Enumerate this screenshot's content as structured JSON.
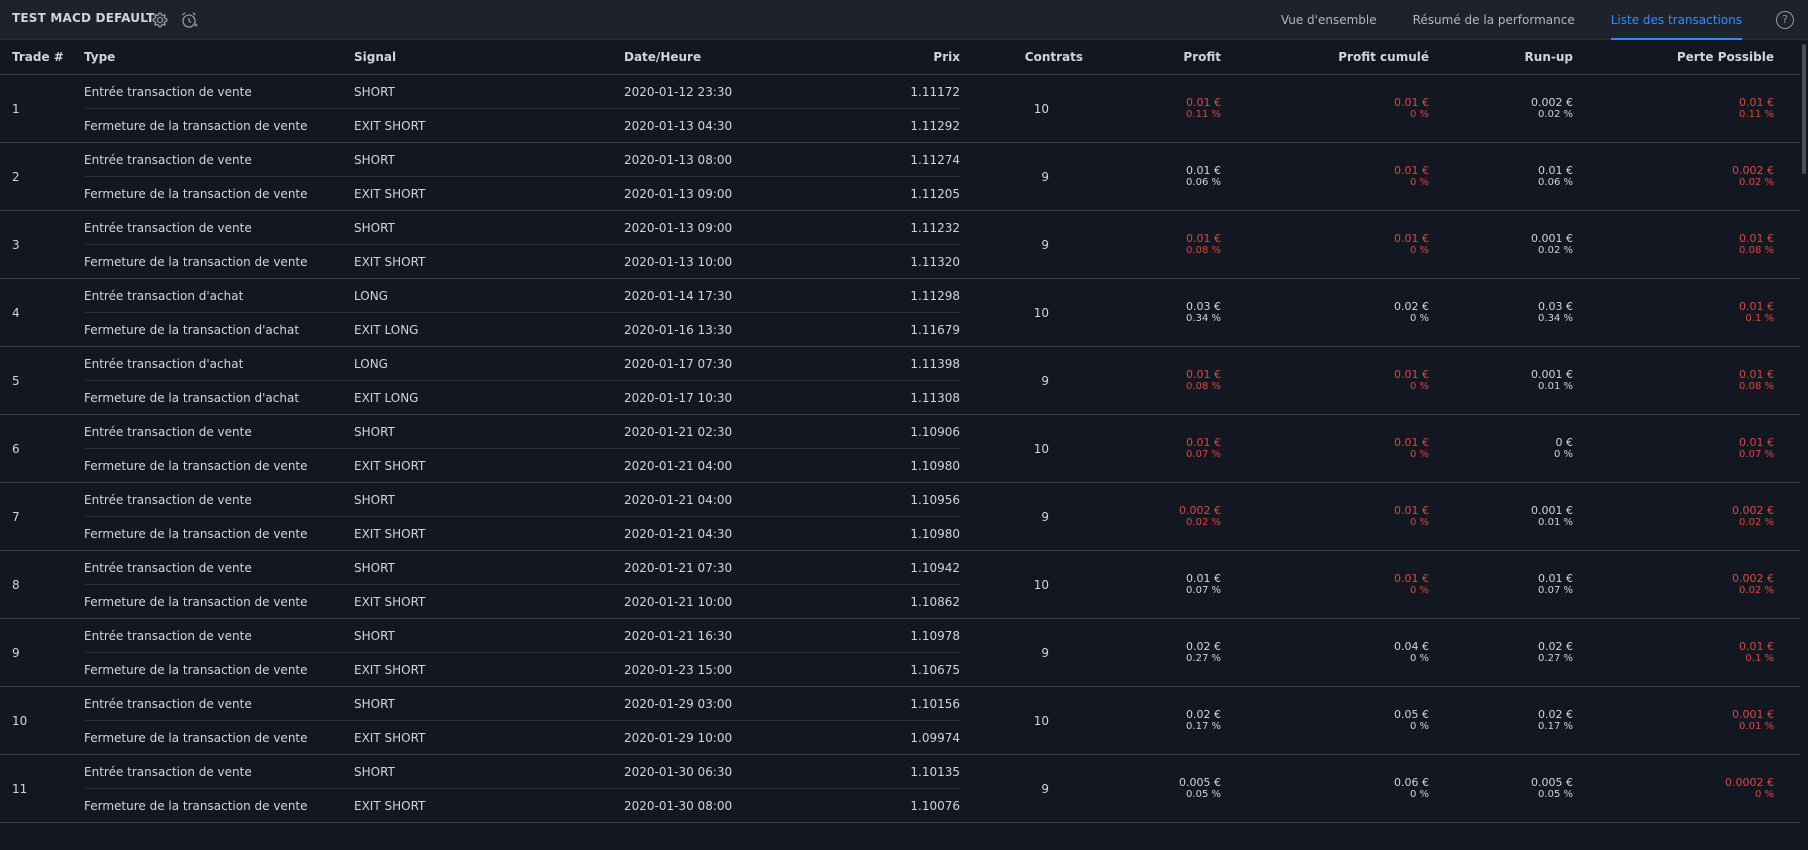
{
  "header": {
    "strategy_title": "TEST MACD DEFAULT",
    "settings_icon": "gear-icon",
    "alert_icon": "alarm-clock-plus-icon",
    "help_icon_text": "?",
    "tabs": [
      {
        "label": "Vue d'ensemble",
        "active": false
      },
      {
        "label": "Résumé de la performance",
        "active": false
      },
      {
        "label": "Liste des transactions",
        "active": true
      }
    ]
  },
  "columns": {
    "trade": "Trade #",
    "type": "Type",
    "signal": "Signal",
    "datetime": "Date/Heure",
    "price": "Prix",
    "contracts": "Contrats",
    "profit": "Profit",
    "cum_profit": "Profit cumulé",
    "runup": "Run-up",
    "drawdown": "Perte Possible"
  },
  "colors": {
    "negative": "#d9493b",
    "active_tab": "#2f8cff",
    "background": "#131722"
  },
  "trades": [
    {
      "num": "1",
      "entry": {
        "type": "Entrée transaction de vente",
        "signal": "SHORT",
        "datetime": "2020-01-12 23:30",
        "price": "1.11172"
      },
      "exit": {
        "type": "Fermeture de la transaction de vente",
        "signal": "EXIT SHORT",
        "datetime": "2020-01-13 04:30",
        "price": "1.11292"
      },
      "contracts": "10",
      "profit": {
        "val": "0.01 €",
        "pct": "0.11 %",
        "neg": true
      },
      "cum_profit": {
        "val": "0.01 €",
        "pct": "0 %",
        "neg": true
      },
      "runup": {
        "val": "0.002 €",
        "pct": "0.02 %",
        "neg": false
      },
      "drawdown": {
        "val": "0.01 €",
        "pct": "0.11 %",
        "neg": true
      }
    },
    {
      "num": "2",
      "entry": {
        "type": "Entrée transaction de vente",
        "signal": "SHORT",
        "datetime": "2020-01-13 08:00",
        "price": "1.11274"
      },
      "exit": {
        "type": "Fermeture de la transaction de vente",
        "signal": "EXIT SHORT",
        "datetime": "2020-01-13 09:00",
        "price": "1.11205"
      },
      "contracts": "9",
      "profit": {
        "val": "0.01 €",
        "pct": "0.06 %",
        "neg": false
      },
      "cum_profit": {
        "val": "0.01 €",
        "pct": "0 %",
        "neg": true
      },
      "runup": {
        "val": "0.01 €",
        "pct": "0.06 %",
        "neg": false
      },
      "drawdown": {
        "val": "0.002 €",
        "pct": "0.02 %",
        "neg": true
      }
    },
    {
      "num": "3",
      "entry": {
        "type": "Entrée transaction de vente",
        "signal": "SHORT",
        "datetime": "2020-01-13 09:00",
        "price": "1.11232"
      },
      "exit": {
        "type": "Fermeture de la transaction de vente",
        "signal": "EXIT SHORT",
        "datetime": "2020-01-13 10:00",
        "price": "1.11320"
      },
      "contracts": "9",
      "profit": {
        "val": "0.01 €",
        "pct": "0.08 %",
        "neg": true
      },
      "cum_profit": {
        "val": "0.01 €",
        "pct": "0 %",
        "neg": true
      },
      "runup": {
        "val": "0.001 €",
        "pct": "0.02 %",
        "neg": false
      },
      "drawdown": {
        "val": "0.01 €",
        "pct": "0.08 %",
        "neg": true
      }
    },
    {
      "num": "4",
      "entry": {
        "type": "Entrée transaction d'achat",
        "signal": "LONG",
        "datetime": "2020-01-14 17:30",
        "price": "1.11298"
      },
      "exit": {
        "type": "Fermeture de la transaction d'achat",
        "signal": "EXIT LONG",
        "datetime": "2020-01-16 13:30",
        "price": "1.11679"
      },
      "contracts": "10",
      "profit": {
        "val": "0.03 €",
        "pct": "0.34 %",
        "neg": false
      },
      "cum_profit": {
        "val": "0.02 €",
        "pct": "0 %",
        "neg": false
      },
      "runup": {
        "val": "0.03 €",
        "pct": "0.34 %",
        "neg": false
      },
      "drawdown": {
        "val": "0.01 €",
        "pct": "0.1 %",
        "neg": true
      }
    },
    {
      "num": "5",
      "entry": {
        "type": "Entrée transaction d'achat",
        "signal": "LONG",
        "datetime": "2020-01-17 07:30",
        "price": "1.11398"
      },
      "exit": {
        "type": "Fermeture de la transaction d'achat",
        "signal": "EXIT LONG",
        "datetime": "2020-01-17 10:30",
        "price": "1.11308"
      },
      "contracts": "9",
      "profit": {
        "val": "0.01 €",
        "pct": "0.08 %",
        "neg": true
      },
      "cum_profit": {
        "val": "0.01 €",
        "pct": "0 %",
        "neg": true
      },
      "runup": {
        "val": "0.001 €",
        "pct": "0.01 %",
        "neg": false
      },
      "drawdown": {
        "val": "0.01 €",
        "pct": "0.08 %",
        "neg": true
      }
    },
    {
      "num": "6",
      "entry": {
        "type": "Entrée transaction de vente",
        "signal": "SHORT",
        "datetime": "2020-01-21 02:30",
        "price": "1.10906"
      },
      "exit": {
        "type": "Fermeture de la transaction de vente",
        "signal": "EXIT SHORT",
        "datetime": "2020-01-21 04:00",
        "price": "1.10980"
      },
      "contracts": "10",
      "profit": {
        "val": "0.01 €",
        "pct": "0.07 %",
        "neg": true
      },
      "cum_profit": {
        "val": "0.01 €",
        "pct": "0 %",
        "neg": true
      },
      "runup": {
        "val": "0 €",
        "pct": "0 %",
        "neg": false
      },
      "drawdown": {
        "val": "0.01 €",
        "pct": "0.07 %",
        "neg": true
      }
    },
    {
      "num": "7",
      "entry": {
        "type": "Entrée transaction de vente",
        "signal": "SHORT",
        "datetime": "2020-01-21 04:00",
        "price": "1.10956"
      },
      "exit": {
        "type": "Fermeture de la transaction de vente",
        "signal": "EXIT SHORT",
        "datetime": "2020-01-21 04:30",
        "price": "1.10980"
      },
      "contracts": "9",
      "profit": {
        "val": "0.002 €",
        "pct": "0.02 %",
        "neg": true
      },
      "cum_profit": {
        "val": "0.01 €",
        "pct": "0 %",
        "neg": true
      },
      "runup": {
        "val": "0.001 €",
        "pct": "0.01 %",
        "neg": false
      },
      "drawdown": {
        "val": "0.002 €",
        "pct": "0.02 %",
        "neg": true
      }
    },
    {
      "num": "8",
      "entry": {
        "type": "Entrée transaction de vente",
        "signal": "SHORT",
        "datetime": "2020-01-21 07:30",
        "price": "1.10942"
      },
      "exit": {
        "type": "Fermeture de la transaction de vente",
        "signal": "EXIT SHORT",
        "datetime": "2020-01-21 10:00",
        "price": "1.10862"
      },
      "contracts": "10",
      "profit": {
        "val": "0.01 €",
        "pct": "0.07 %",
        "neg": false
      },
      "cum_profit": {
        "val": "0.01 €",
        "pct": "0 %",
        "neg": true
      },
      "runup": {
        "val": "0.01 €",
        "pct": "0.07 %",
        "neg": false
      },
      "drawdown": {
        "val": "0.002 €",
        "pct": "0.02 %",
        "neg": true
      }
    },
    {
      "num": "9",
      "entry": {
        "type": "Entrée transaction de vente",
        "signal": "SHORT",
        "datetime": "2020-01-21 16:30",
        "price": "1.10978"
      },
      "exit": {
        "type": "Fermeture de la transaction de vente",
        "signal": "EXIT SHORT",
        "datetime": "2020-01-23 15:00",
        "price": "1.10675"
      },
      "contracts": "9",
      "profit": {
        "val": "0.02 €",
        "pct": "0.27 %",
        "neg": false
      },
      "cum_profit": {
        "val": "0.04 €",
        "pct": "0 %",
        "neg": false
      },
      "runup": {
        "val": "0.02 €",
        "pct": "0.27 %",
        "neg": false
      },
      "drawdown": {
        "val": "0.01 €",
        "pct": "0.1 %",
        "neg": true
      }
    },
    {
      "num": "10",
      "entry": {
        "type": "Entrée transaction de vente",
        "signal": "SHORT",
        "datetime": "2020-01-29 03:00",
        "price": "1.10156"
      },
      "exit": {
        "type": "Fermeture de la transaction de vente",
        "signal": "EXIT SHORT",
        "datetime": "2020-01-29 10:00",
        "price": "1.09974"
      },
      "contracts": "10",
      "profit": {
        "val": "0.02 €",
        "pct": "0.17 %",
        "neg": false
      },
      "cum_profit": {
        "val": "0.05 €",
        "pct": "0 %",
        "neg": false
      },
      "runup": {
        "val": "0.02 €",
        "pct": "0.17 %",
        "neg": false
      },
      "drawdown": {
        "val": "0.001 €",
        "pct": "0.01 %",
        "neg": true
      }
    },
    {
      "num": "11",
      "entry": {
        "type": "Entrée transaction de vente",
        "signal": "SHORT",
        "datetime": "2020-01-30 06:30",
        "price": "1.10135"
      },
      "exit": {
        "type": "Fermeture de la transaction de vente",
        "signal": "EXIT SHORT",
        "datetime": "2020-01-30 08:00",
        "price": "1.10076"
      },
      "contracts": "9",
      "profit": {
        "val": "0.005 €",
        "pct": "0.05 %",
        "neg": false
      },
      "cum_profit": {
        "val": "0.06 €",
        "pct": "0 %",
        "neg": false
      },
      "runup": {
        "val": "0.005 €",
        "pct": "0.05 %",
        "neg": false
      },
      "drawdown": {
        "val": "0.0002 €",
        "pct": "0 %",
        "neg": true
      }
    }
  ]
}
